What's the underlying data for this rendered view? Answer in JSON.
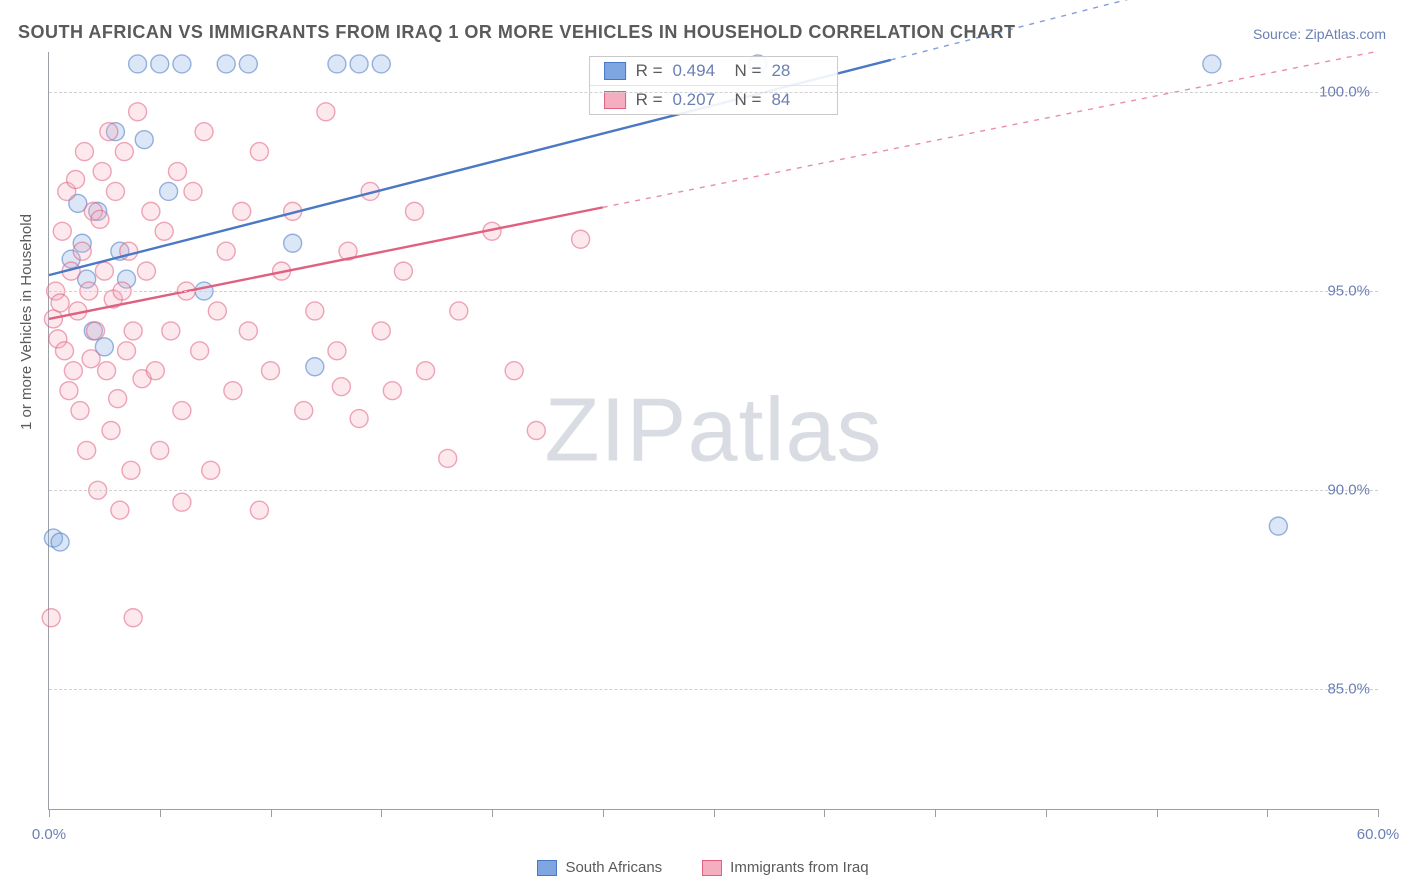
{
  "title": "SOUTH AFRICAN VS IMMIGRANTS FROM IRAQ 1 OR MORE VEHICLES IN HOUSEHOLD CORRELATION CHART",
  "source_label": "Source: ZipAtlas.com",
  "y_axis_title": "1 or more Vehicles in Household",
  "watermark": {
    "bold": "ZIP",
    "light": "atlas"
  },
  "chart": {
    "type": "scatter",
    "xlim": [
      0,
      60
    ],
    "ylim": [
      82,
      101
    ],
    "x_ticks": [
      0,
      5,
      10,
      15,
      20,
      25,
      30,
      35,
      40,
      45,
      50,
      55,
      60
    ],
    "x_tick_labels": {
      "0": "0.0%",
      "60": "60.0%"
    },
    "y_ticks": [
      85,
      90,
      95,
      100
    ],
    "y_tick_labels": {
      "85": "85.0%",
      "90": "90.0%",
      "95": "95.0%",
      "100": "100.0%"
    },
    "grid_color": "#d0d0d0",
    "axis_color": "#9aa0a6",
    "background_color": "#ffffff",
    "marker_radius": 9,
    "marker_opacity": 0.28,
    "series": [
      {
        "name": "South Africans",
        "label": "South Africans",
        "fill": "#7ea6e0",
        "stroke": "#4a78c4",
        "R": "0.494",
        "N": "28",
        "trend": {
          "x1": 0,
          "y1": 95.4,
          "x2": 38,
          "y2": 100.8,
          "dashed_to_x": 60
        },
        "points": [
          [
            0.2,
            88.8
          ],
          [
            0.5,
            88.7
          ],
          [
            1.0,
            95.8
          ],
          [
            1.3,
            97.2
          ],
          [
            1.5,
            96.2
          ],
          [
            1.7,
            95.3
          ],
          [
            2.0,
            94.0
          ],
          [
            2.2,
            97.0
          ],
          [
            2.5,
            93.6
          ],
          [
            3.0,
            99.0
          ],
          [
            3.2,
            96.0
          ],
          [
            3.5,
            95.3
          ],
          [
            4.0,
            100.7
          ],
          [
            4.3,
            98.8
          ],
          [
            5.0,
            100.7
          ],
          [
            5.4,
            97.5
          ],
          [
            6.0,
            100.7
          ],
          [
            7.0,
            95.0
          ],
          [
            8.0,
            100.7
          ],
          [
            9.0,
            100.7
          ],
          [
            11.0,
            96.2
          ],
          [
            12.0,
            93.1
          ],
          [
            13.0,
            100.7
          ],
          [
            14.0,
            100.7
          ],
          [
            15.0,
            100.7
          ],
          [
            32.0,
            100.7
          ],
          [
            52.5,
            100.7
          ],
          [
            55.5,
            89.1
          ]
        ]
      },
      {
        "name": "Immigrants from Iraq",
        "label": "Immigrants from Iraq",
        "fill": "#f4aec0",
        "stroke": "#e0607f",
        "R": "0.207",
        "N": "84",
        "trend": {
          "x1": 0,
          "y1": 94.3,
          "x2": 25,
          "y2": 97.1,
          "dashed_to_x": 60
        },
        "points": [
          [
            0.1,
            86.8
          ],
          [
            0.2,
            94.3
          ],
          [
            0.3,
            95.0
          ],
          [
            0.4,
            93.8
          ],
          [
            0.5,
            94.7
          ],
          [
            0.6,
            96.5
          ],
          [
            0.7,
            93.5
          ],
          [
            0.8,
            97.5
          ],
          [
            0.9,
            92.5
          ],
          [
            1.0,
            95.5
          ],
          [
            1.1,
            93.0
          ],
          [
            1.2,
            97.8
          ],
          [
            1.3,
            94.5
          ],
          [
            1.4,
            92.0
          ],
          [
            1.5,
            96.0
          ],
          [
            1.6,
            98.5
          ],
          [
            1.7,
            91.0
          ],
          [
            1.8,
            95.0
          ],
          [
            1.9,
            93.3
          ],
          [
            2.0,
            97.0
          ],
          [
            2.1,
            94.0
          ],
          [
            2.2,
            90.0
          ],
          [
            2.3,
            96.8
          ],
          [
            2.4,
            98.0
          ],
          [
            2.5,
            95.5
          ],
          [
            2.6,
            93.0
          ],
          [
            2.7,
            99.0
          ],
          [
            2.8,
            91.5
          ],
          [
            2.9,
            94.8
          ],
          [
            3.0,
            97.5
          ],
          [
            3.1,
            92.3
          ],
          [
            3.2,
            89.5
          ],
          [
            3.3,
            95.0
          ],
          [
            3.4,
            98.5
          ],
          [
            3.5,
            93.5
          ],
          [
            3.6,
            96.0
          ],
          [
            3.7,
            90.5
          ],
          [
            3.8,
            94.0
          ],
          [
            4.0,
            99.5
          ],
          [
            4.2,
            92.8
          ],
          [
            4.4,
            95.5
          ],
          [
            4.6,
            97.0
          ],
          [
            4.8,
            93.0
          ],
          [
            5.0,
            91.0
          ],
          [
            5.2,
            96.5
          ],
          [
            5.5,
            94.0
          ],
          [
            5.8,
            98.0
          ],
          [
            6.0,
            92.0
          ],
          [
            6.2,
            95.0
          ],
          [
            6.5,
            97.5
          ],
          [
            6.8,
            93.5
          ],
          [
            7.0,
            99.0
          ],
          [
            7.3,
            90.5
          ],
          [
            7.6,
            94.5
          ],
          [
            8.0,
            96.0
          ],
          [
            8.3,
            92.5
          ],
          [
            8.7,
            97.0
          ],
          [
            9.0,
            94.0
          ],
          [
            9.5,
            98.5
          ],
          [
            10.0,
            93.0
          ],
          [
            10.5,
            95.5
          ],
          [
            11.0,
            97.0
          ],
          [
            11.5,
            92.0
          ],
          [
            12.0,
            94.5
          ],
          [
            12.5,
            99.5
          ],
          [
            13.0,
            93.5
          ],
          [
            13.2,
            92.6
          ],
          [
            13.5,
            96.0
          ],
          [
            14.0,
            91.8
          ],
          [
            14.5,
            97.5
          ],
          [
            15.0,
            94.0
          ],
          [
            15.5,
            92.5
          ],
          [
            16.0,
            95.5
          ],
          [
            16.5,
            97.0
          ],
          [
            17.0,
            93.0
          ],
          [
            18.0,
            90.8
          ],
          [
            18.5,
            94.5
          ],
          [
            20.0,
            96.5
          ],
          [
            21.0,
            93.0
          ],
          [
            22.0,
            91.5
          ],
          [
            24.0,
            96.3
          ],
          [
            3.8,
            86.8
          ],
          [
            6.0,
            89.7
          ],
          [
            9.5,
            89.5
          ]
        ]
      }
    ]
  },
  "stat_legend": {
    "r_label": "R =",
    "n_label": "N ="
  }
}
